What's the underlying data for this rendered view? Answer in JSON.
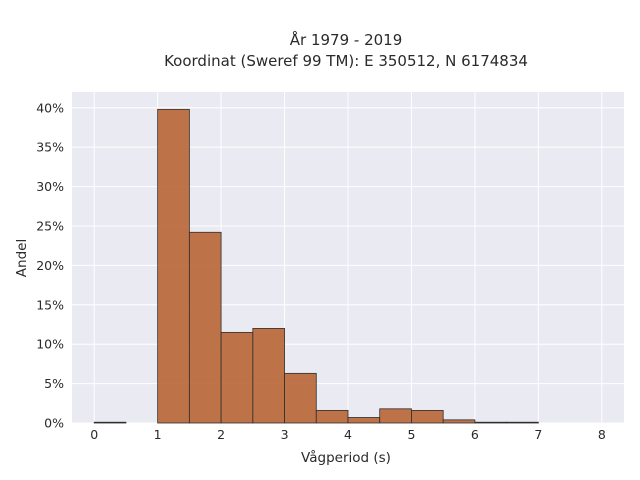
{
  "chart_data": {
    "type": "bar",
    "title_line1": "År 1979 - 2019",
    "title_line2": "Koordinat (Sweref 99 TM): E 350512, N 6174834",
    "xlabel": "Vågperiod (s)",
    "ylabel": "Andel",
    "bin_width": 0.5,
    "bins": [
      {
        "start": 0.0,
        "value": 0.1
      },
      {
        "start": 0.5,
        "value": 0.0
      },
      {
        "start": 1.0,
        "value": 39.8
      },
      {
        "start": 1.5,
        "value": 24.2
      },
      {
        "start": 2.0,
        "value": 11.5
      },
      {
        "start": 2.5,
        "value": 12.0
      },
      {
        "start": 3.0,
        "value": 6.3
      },
      {
        "start": 3.5,
        "value": 1.6
      },
      {
        "start": 4.0,
        "value": 0.7
      },
      {
        "start": 4.5,
        "value": 1.8
      },
      {
        "start": 5.0,
        "value": 1.6
      },
      {
        "start": 5.5,
        "value": 0.4
      },
      {
        "start": 6.0,
        "value": 0.1
      },
      {
        "start": 6.5,
        "value": 0.1
      }
    ],
    "xlim": [
      -0.35,
      8.35
    ],
    "ylim": [
      0,
      42
    ],
    "x_ticks": [
      0,
      1,
      2,
      3,
      4,
      5,
      6,
      7,
      8
    ],
    "x_tick_labels": [
      "0",
      "1",
      "2",
      "3",
      "4",
      "5",
      "6",
      "7",
      "8"
    ],
    "y_ticks": [
      0,
      5,
      10,
      15,
      20,
      25,
      30,
      35,
      40
    ],
    "y_tick_labels": [
      "0%",
      "5%",
      "10%",
      "15%",
      "20%",
      "25%",
      "30%",
      "35%",
      "40%"
    ],
    "grid": true,
    "colors": {
      "bar_fill": "#b86535",
      "bar_stroke": "#2e2e2e",
      "plot_bg": "#eaeaf2",
      "grid": "#ffffff"
    }
  }
}
